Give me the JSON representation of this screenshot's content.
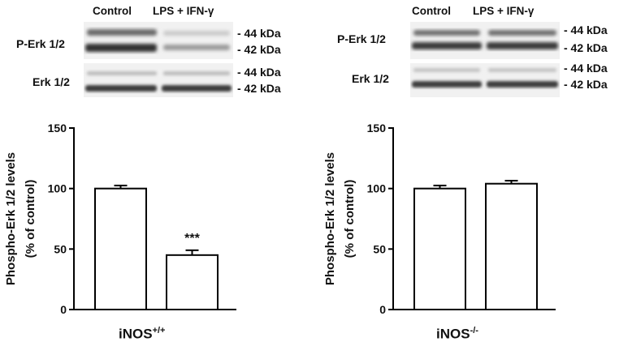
{
  "panels": [
    {
      "id": "wt",
      "columns": [
        "Control",
        "LPS + IFN-γ"
      ],
      "blot_rows": [
        {
          "label": "P-Erk 1/2",
          "markers": [
            "- 44  kDa",
            "- 42  kDa"
          ]
        },
        {
          "label": "Erk 1/2",
          "markers": [
            "- 44  kDa",
            "- 42  kDa"
          ]
        }
      ],
      "title": "iNOS",
      "title_sup": "+/+"
    },
    {
      "id": "ko",
      "columns": [
        "Control",
        "LPS + IFN-γ"
      ],
      "blot_rows": [
        {
          "label": "P-Erk 1/2",
          "markers": [
            "- 44  kDa",
            "- 42  kDa"
          ]
        },
        {
          "label": "Erk 1/2",
          "markers": [
            "- 44  kDa",
            "- 42  kDa"
          ]
        }
      ],
      "title": "iNOS",
      "title_sup": "-/-"
    }
  ],
  "chart_data": [
    {
      "type": "bar",
      "categories": [
        "Control",
        "LPS + IFN-γ"
      ],
      "values": [
        100,
        45
      ],
      "errors": [
        2.5,
        4
      ],
      "annotations": [
        "",
        "***"
      ],
      "ylabel": "Phospho-Erk 1/2 levels\n(% of control)",
      "ylabel_lines": [
        "Phospho-Erk 1/2 levels",
        "(% of control)"
      ],
      "xlabel": "",
      "ylim": [
        0,
        150
      ],
      "yticks": [
        0,
        50,
        100,
        150
      ],
      "grid": false,
      "legend": "none",
      "bar_fill": "#ffffff",
      "bar_stroke": "#000000"
    },
    {
      "type": "bar",
      "categories": [
        "Control",
        "LPS + IFN-γ"
      ],
      "values": [
        100,
        104
      ],
      "errors": [
        2.5,
        2.5
      ],
      "annotations": [
        "",
        ""
      ],
      "ylabel": "Phospho-Erk 1/2 levels\n(% of control)",
      "ylabel_lines": [
        "Phospho-Erk 1/2 levels",
        "(% of control)"
      ],
      "xlabel": "",
      "ylim": [
        0,
        150
      ],
      "yticks": [
        0,
        50,
        100,
        150
      ],
      "grid": false,
      "legend": "none",
      "bar_fill": "#ffffff",
      "bar_stroke": "#000000"
    }
  ]
}
